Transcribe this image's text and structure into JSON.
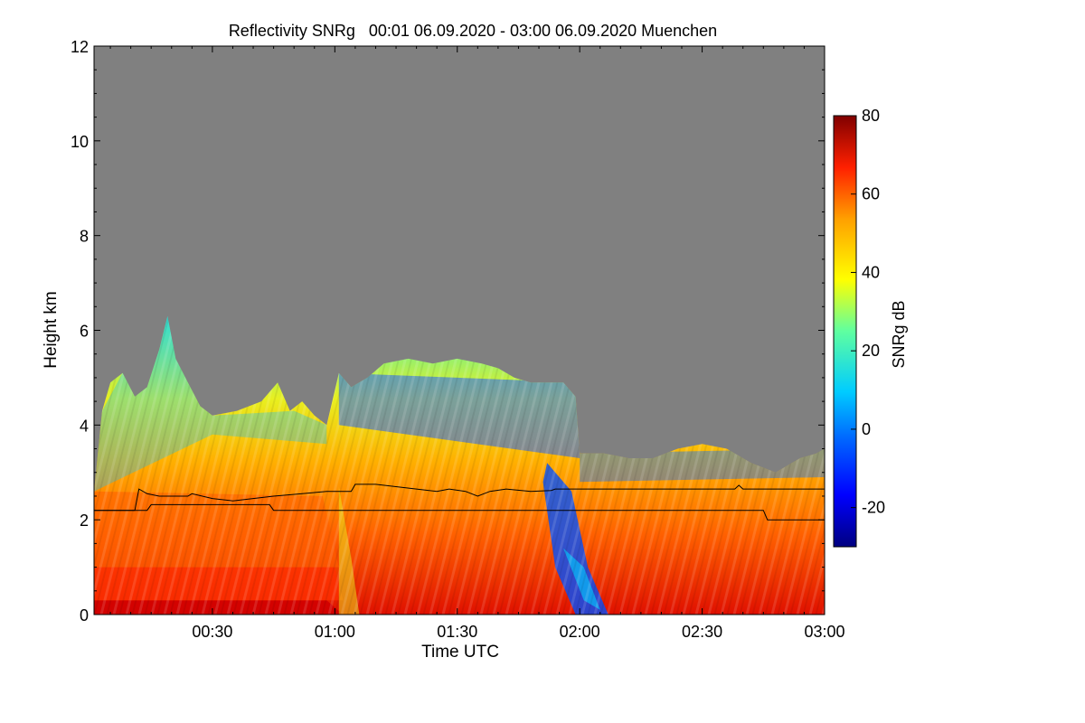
{
  "chart_data": {
    "type": "heatmap",
    "title": "Reflectivity SNRg   00:01 06.09.2020 - 03:00 06.09.2020 Muenchen",
    "xlabel": "Time UTC",
    "ylabel": "Height km",
    "xlim_minutes": [
      1,
      180
    ],
    "ylim_km": [
      0,
      12
    ],
    "x_ticks": [
      {
        "minutes": 30,
        "label": "00:30"
      },
      {
        "minutes": 60,
        "label": "01:00"
      },
      {
        "minutes": 90,
        "label": "01:30"
      },
      {
        "minutes": 120,
        "label": "02:00"
      },
      {
        "minutes": 150,
        "label": "02:30"
      },
      {
        "minutes": 180,
        "label": "03:00"
      }
    ],
    "y_ticks": [
      {
        "value": 0,
        "label": "0"
      },
      {
        "value": 2,
        "label": "2"
      },
      {
        "value": 4,
        "label": "4"
      },
      {
        "value": 6,
        "label": "6"
      },
      {
        "value": 8,
        "label": "8"
      },
      {
        "value": 10,
        "label": "10"
      },
      {
        "value": 12,
        "label": "12"
      }
    ],
    "colorbar": {
      "label": "SNRg dB",
      "range": [
        -30,
        80
      ],
      "ticks": [
        {
          "value": 80,
          "label": "80"
        },
        {
          "value": 60,
          "label": "60"
        },
        {
          "value": 40,
          "label": "40"
        },
        {
          "value": 20,
          "label": "20"
        },
        {
          "value": 0,
          "label": "0"
        },
        {
          "value": -20,
          "label": "-20"
        }
      ]
    },
    "no_data_color": "#808080",
    "signal_top_km": [
      [
        1,
        2.6
      ],
      [
        3,
        4.3
      ],
      [
        5,
        4.9
      ],
      [
        8,
        5.1
      ],
      [
        11,
        4.6
      ],
      [
        14,
        4.8
      ],
      [
        17,
        5.6
      ],
      [
        19,
        6.3
      ],
      [
        21,
        5.4
      ],
      [
        24,
        4.9
      ],
      [
        27,
        4.4
      ],
      [
        30,
        4.2
      ],
      [
        36,
        4.3
      ],
      [
        42,
        4.5
      ],
      [
        46,
        4.9
      ],
      [
        49,
        4.3
      ],
      [
        52,
        4.5
      ],
      [
        55,
        4.2
      ],
      [
        58,
        4.0
      ],
      [
        61,
        5.1
      ],
      [
        64,
        4.8
      ],
      [
        68,
        5.0
      ],
      [
        72,
        5.3
      ],
      [
        78,
        5.4
      ],
      [
        84,
        5.3
      ],
      [
        90,
        5.4
      ],
      [
        96,
        5.3
      ],
      [
        100,
        5.2
      ],
      [
        104,
        5.0
      ],
      [
        108,
        4.9
      ],
      [
        112,
        4.9
      ],
      [
        116,
        4.9
      ],
      [
        119,
        4.6
      ],
      [
        120,
        3.4
      ],
      [
        126,
        3.4
      ],
      [
        132,
        3.3
      ],
      [
        138,
        3.3
      ],
      [
        144,
        3.5
      ],
      [
        150,
        3.6
      ],
      [
        156,
        3.5
      ],
      [
        162,
        3.2
      ],
      [
        168,
        3.0
      ],
      [
        174,
        3.3
      ],
      [
        178,
        3.4
      ],
      [
        180,
        3.5
      ]
    ],
    "series": [
      {
        "name": "upper line",
        "points": [
          [
            1,
            2.2
          ],
          [
            11,
            2.2
          ],
          [
            12,
            2.65
          ],
          [
            14,
            2.55
          ],
          [
            17,
            2.5
          ],
          [
            24,
            2.5
          ],
          [
            25,
            2.55
          ],
          [
            30,
            2.45
          ],
          [
            35,
            2.4
          ],
          [
            40,
            2.45
          ],
          [
            45,
            2.5
          ],
          [
            52,
            2.55
          ],
          [
            58,
            2.6
          ],
          [
            64,
            2.6
          ],
          [
            65,
            2.75
          ],
          [
            70,
            2.75
          ],
          [
            75,
            2.7
          ],
          [
            80,
            2.65
          ],
          [
            85,
            2.6
          ],
          [
            88,
            2.65
          ],
          [
            92,
            2.6
          ],
          [
            95,
            2.5
          ],
          [
            98,
            2.6
          ],
          [
            102,
            2.65
          ],
          [
            108,
            2.6
          ],
          [
            113,
            2.62
          ],
          [
            114,
            2.65
          ],
          [
            158,
            2.65
          ],
          [
            159,
            2.73
          ],
          [
            160,
            2.65
          ],
          [
            180,
            2.65
          ]
        ]
      },
      {
        "name": "lower line",
        "points": [
          [
            1,
            2.2
          ],
          [
            14,
            2.2
          ],
          [
            15,
            2.32
          ],
          [
            44,
            2.32
          ],
          [
            45,
            2.2
          ],
          [
            165,
            2.2
          ],
          [
            166,
            2.0
          ],
          [
            180,
            2.0
          ]
        ]
      }
    ]
  }
}
